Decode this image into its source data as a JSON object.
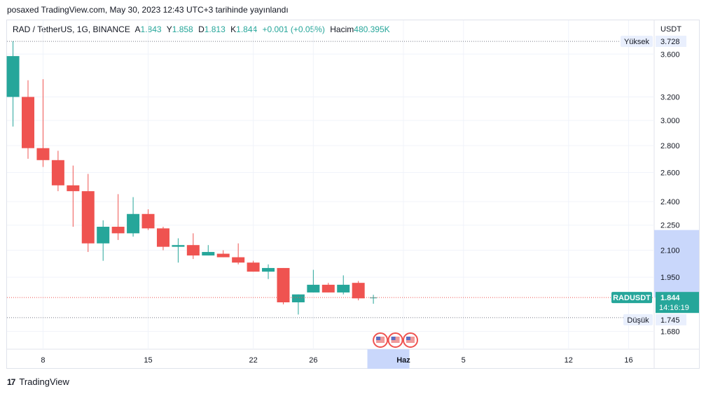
{
  "header": {
    "published": "posaxed TradingView.com, May 30, 2023 12:43 UTC+3 tarihinde yayınlandı"
  },
  "legend": {
    "symbol": "RAD / TetherUS, 1G, BINANCE",
    "open_label": "A",
    "open": "1.843",
    "high_label": "Y",
    "high": "1.858",
    "low_label": "D",
    "low": "1.813",
    "close_label": "K",
    "close": "1.844",
    "change": "+0.001 (+0.05%)",
    "volume_label": "Hacim",
    "volume": "480.395K"
  },
  "footer": {
    "logo": "17",
    "brand": "TradingView"
  },
  "colors": {
    "up": "#26a69a",
    "down": "#ef5350",
    "grid": "#f0f3fa",
    "axis_text": "#131722",
    "price_tag": "#26a69a",
    "highlight": "#c9d7fb"
  },
  "chart_data": {
    "type": "candlestick",
    "currency_label": "USDT",
    "x_ticks": [
      {
        "label": "8",
        "day": 8
      },
      {
        "label": "15",
        "day": 15
      },
      {
        "label": "22",
        "day": 22
      },
      {
        "label": "26",
        "day": 26
      },
      {
        "label": "Haz",
        "day": 32
      },
      {
        "label": "5",
        "day": 36
      },
      {
        "label": "12",
        "day": 43
      },
      {
        "label": "16",
        "day": 47
      }
    ],
    "y_ticks": [
      "3.600",
      "3.200",
      "3.000",
      "2.800",
      "2.600",
      "2.400",
      "2.250",
      "2.100",
      "1.950",
      "1.680"
    ],
    "ylim": [
      1.6,
      3.95
    ],
    "xlim": [
      5.6,
      48.7
    ],
    "candles": [
      {
        "day": 6,
        "o": 3.2,
        "h": 3.73,
        "l": 2.95,
        "c": 3.58
      },
      {
        "day": 7,
        "o": 3.2,
        "h": 3.35,
        "l": 2.7,
        "c": 2.78
      },
      {
        "day": 8,
        "o": 2.78,
        "h": 3.36,
        "l": 2.64,
        "c": 2.69
      },
      {
        "day": 9,
        "o": 2.69,
        "h": 2.76,
        "l": 2.47,
        "c": 2.51
      },
      {
        "day": 10,
        "o": 2.51,
        "h": 2.65,
        "l": 2.24,
        "c": 2.47
      },
      {
        "day": 11,
        "o": 2.47,
        "h": 2.59,
        "l": 2.09,
        "c": 2.14
      },
      {
        "day": 12,
        "o": 2.14,
        "h": 2.28,
        "l": 2.04,
        "c": 2.24
      },
      {
        "day": 13,
        "o": 2.24,
        "h": 2.45,
        "l": 2.16,
        "c": 2.2
      },
      {
        "day": 14,
        "o": 2.2,
        "h": 2.43,
        "l": 2.18,
        "c": 2.32
      },
      {
        "day": 15,
        "o": 2.32,
        "h": 2.35,
        "l": 2.22,
        "c": 2.23
      },
      {
        "day": 16,
        "o": 2.23,
        "h": 2.24,
        "l": 2.1,
        "c": 2.12
      },
      {
        "day": 17,
        "o": 2.12,
        "h": 2.17,
        "l": 2.03,
        "c": 2.13
      },
      {
        "day": 18,
        "o": 2.13,
        "h": 2.2,
        "l": 2.05,
        "c": 2.07
      },
      {
        "day": 19,
        "o": 2.07,
        "h": 2.13,
        "l": 2.07,
        "c": 2.09
      },
      {
        "day": 20,
        "o": 2.08,
        "h": 2.1,
        "l": 2.06,
        "c": 2.06
      },
      {
        "day": 21,
        "o": 2.06,
        "h": 2.14,
        "l": 2.02,
        "c": 2.03
      },
      {
        "day": 22,
        "o": 2.03,
        "h": 2.04,
        "l": 1.98,
        "c": 1.98
      },
      {
        "day": 23,
        "o": 1.98,
        "h": 2.02,
        "l": 1.94,
        "c": 2.0
      },
      {
        "day": 24,
        "o": 2.0,
        "h": 2.0,
        "l": 1.81,
        "c": 1.82
      },
      {
        "day": 25,
        "o": 1.82,
        "h": 1.86,
        "l": 1.76,
        "c": 1.86
      },
      {
        "day": 26,
        "o": 1.87,
        "h": 1.99,
        "l": 1.87,
        "c": 1.91
      },
      {
        "day": 27,
        "o": 1.91,
        "h": 1.92,
        "l": 1.87,
        "c": 1.87
      },
      {
        "day": 28,
        "o": 1.87,
        "h": 1.96,
        "l": 1.86,
        "c": 1.91
      },
      {
        "day": 29,
        "o": 1.92,
        "h": 1.93,
        "l": 1.83,
        "c": 1.84
      },
      {
        "day": 30,
        "o": 1.843,
        "h": 1.858,
        "l": 1.813,
        "c": 1.844
      }
    ],
    "high_marker": {
      "label": "Yüksek",
      "value": 3.728,
      "text": "3.728"
    },
    "low_marker": {
      "label": "Düşük",
      "value": 1.745,
      "text": "1.745"
    },
    "last_price": {
      "symbol": "RADUSDT",
      "value": 1.844,
      "text": "1.844",
      "countdown": "14:16:19"
    },
    "highlight_y": [
      1.844,
      2.22
    ],
    "highlight_x": [
      29.6,
      32.4
    ],
    "event_days": [
      30,
      31,
      32
    ]
  }
}
